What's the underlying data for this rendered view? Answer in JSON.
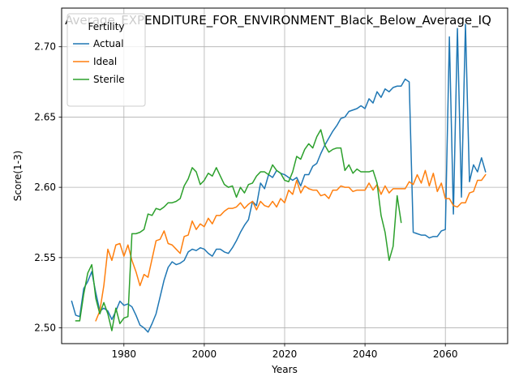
{
  "chart_data": {
    "type": "line",
    "title": "Average_EXPENDITURE_FOR_ENVIRONMENT_Black_Below_Average_IQ",
    "xlabel": "Years",
    "ylabel": "Score(1-3)",
    "xlim": [
      1964.5,
      2075.5
    ],
    "ylim": [
      2.4888,
      2.7275
    ],
    "x_ticks": [
      1980,
      2000,
      2020,
      2040,
      2060
    ],
    "x_tick_labels": [
      "1980",
      "2000",
      "2020",
      "2040",
      "2060"
    ],
    "y_ticks": [
      2.5,
      2.55,
      2.6,
      2.65,
      2.7
    ],
    "y_tick_labels": [
      "2.50",
      "2.55",
      "2.60",
      "2.65",
      "2.70"
    ],
    "grid": true,
    "legend": {
      "title": "Fertility",
      "position": "top-left"
    },
    "series": [
      {
        "name": "Actual",
        "color": "#1f77b4",
        "x": [
          1967,
          1968,
          1969,
          1970,
          1971,
          1972,
          1973,
          1974,
          1975,
          1976,
          1977,
          1978,
          1979,
          1980,
          1981,
          1982,
          1983,
          1984,
          1985,
          1986,
          1987,
          1988,
          1989,
          1990,
          1991,
          1992,
          1993,
          1994,
          1995,
          1996,
          1997,
          1998,
          1999,
          2000,
          2001,
          2002,
          2003,
          2004,
          2005,
          2006,
          2007,
          2008,
          2009,
          2010,
          2011,
          2012,
          2013,
          2014,
          2015,
          2016,
          2017,
          2018,
          2019,
          2020,
          2021,
          2022,
          2023,
          2024,
          2025,
          2026,
          2027,
          2028,
          2029,
          2030,
          2031,
          2032,
          2033,
          2034,
          2035,
          2036,
          2037,
          2038,
          2039,
          2040,
          2041,
          2042,
          2043,
          2044,
          2045,
          2046,
          2047,
          2048,
          2049,
          2050,
          2051,
          2052,
          2053,
          2054,
          2055,
          2056,
          2057,
          2058,
          2059,
          2060,
          2061,
          2062,
          2063,
          2064,
          2065,
          2066,
          2067,
          2068,
          2069,
          2070
        ],
        "y": [
          2.519,
          2.509,
          2.508,
          2.528,
          2.533,
          2.54,
          2.525,
          2.512,
          2.514,
          2.512,
          2.506,
          2.512,
          2.519,
          2.516,
          2.517,
          2.515,
          2.509,
          2.502,
          2.5,
          2.497,
          2.503,
          2.51,
          2.522,
          2.534,
          2.543,
          2.547,
          2.545,
          2.546,
          2.548,
          2.554,
          2.556,
          2.555,
          2.557,
          2.556,
          2.553,
          2.551,
          2.556,
          2.556,
          2.554,
          2.553,
          2.557,
          2.562,
          2.568,
          2.573,
          2.577,
          2.59,
          2.587,
          2.603,
          2.599,
          2.609,
          2.607,
          2.612,
          2.61,
          2.609,
          2.607,
          2.605,
          2.607,
          2.601,
          2.609,
          2.609,
          2.615,
          2.617,
          2.624,
          2.63,
          2.635,
          2.64,
          2.644,
          2.649,
          2.65,
          2.654,
          2.655,
          2.656,
          2.658,
          2.656,
          2.663,
          2.66,
          2.668,
          2.664,
          2.67,
          2.668,
          2.671,
          2.672,
          2.672,
          2.677,
          2.675,
          2.568,
          2.567,
          2.566,
          2.566,
          2.564,
          2.565,
          2.565,
          2.569,
          2.57,
          2.707,
          2.581,
          2.713,
          2.593,
          2.716,
          2.604,
          2.616,
          2.611,
          2.621,
          2.611
        ]
      },
      {
        "name": "Ideal",
        "color": "#ff7f0e",
        "x": [
          1973,
          1974,
          1975,
          1976,
          1977,
          1978,
          1979,
          1980,
          1981,
          1982,
          1983,
          1984,
          1985,
          1986,
          1987,
          1988,
          1989,
          1990,
          1991,
          1992,
          1993,
          1994,
          1995,
          1996,
          1997,
          1998,
          1999,
          2000,
          2001,
          2002,
          2003,
          2004,
          2005,
          2006,
          2007,
          2008,
          2009,
          2010,
          2011,
          2012,
          2013,
          2014,
          2015,
          2016,
          2017,
          2018,
          2019,
          2020,
          2021,
          2022,
          2023,
          2024,
          2025,
          2026,
          2027,
          2028,
          2029,
          2030,
          2031,
          2032,
          2033,
          2034,
          2035,
          2036,
          2037,
          2038,
          2039,
          2040,
          2041,
          2042,
          2043,
          2044,
          2045,
          2046,
          2047,
          2048,
          2049,
          2050,
          2051,
          2052,
          2053,
          2054,
          2055,
          2056,
          2057,
          2058,
          2059,
          2060,
          2061,
          2062,
          2063,
          2064,
          2065,
          2066,
          2067,
          2068,
          2069,
          2070
        ],
        "y": [
          2.505,
          2.512,
          2.53,
          2.556,
          2.548,
          2.559,
          2.56,
          2.551,
          2.559,
          2.548,
          2.54,
          2.53,
          2.538,
          2.536,
          2.549,
          2.562,
          2.563,
          2.569,
          2.56,
          2.559,
          2.556,
          2.553,
          2.565,
          2.566,
          2.576,
          2.57,
          2.574,
          2.572,
          2.578,
          2.574,
          2.58,
          2.58,
          2.583,
          2.585,
          2.585,
          2.586,
          2.589,
          2.585,
          2.588,
          2.59,
          2.584,
          2.59,
          2.587,
          2.586,
          2.59,
          2.586,
          2.592,
          2.589,
          2.598,
          2.595,
          2.605,
          2.596,
          2.601,
          2.599,
          2.598,
          2.598,
          2.594,
          2.595,
          2.592,
          2.598,
          2.598,
          2.601,
          2.6,
          2.6,
          2.597,
          2.598,
          2.598,
          2.598,
          2.603,
          2.598,
          2.602,
          2.595,
          2.601,
          2.596,
          2.599,
          2.599,
          2.599,
          2.599,
          2.604,
          2.602,
          2.609,
          2.603,
          2.612,
          2.601,
          2.61,
          2.597,
          2.603,
          2.592,
          2.592,
          2.587,
          2.586,
          2.589,
          2.589,
          2.596,
          2.597,
          2.605,
          2.605,
          2.609
        ]
      },
      {
        "name": "Sterile",
        "color": "#2ca02c",
        "x": [
          1968,
          1969,
          1970,
          1971,
          1972,
          1973,
          1974,
          1975,
          1976,
          1977,
          1978,
          1979,
          1980,
          1981,
          1982,
          1983,
          1984,
          1985,
          1986,
          1987,
          1988,
          1989,
          1990,
          1991,
          1992,
          1993,
          1994,
          1995,
          1996,
          1997,
          1998,
          1999,
          2000,
          2001,
          2002,
          2003,
          2004,
          2005,
          2006,
          2007,
          2008,
          2009,
          2010,
          2011,
          2012,
          2013,
          2014,
          2015,
          2016,
          2017,
          2018,
          2019,
          2020,
          2021,
          2022,
          2023,
          2024,
          2025,
          2026,
          2027,
          2028,
          2029,
          2030,
          2031,
          2032,
          2033,
          2034,
          2035,
          2036,
          2037,
          2038,
          2039,
          2040,
          2041,
          2042,
          2043,
          2044,
          2045,
          2046,
          2047,
          2048,
          2049
        ],
        "y": [
          2.505,
          2.505,
          2.524,
          2.539,
          2.545,
          2.521,
          2.51,
          2.518,
          2.51,
          2.498,
          2.514,
          2.503,
          2.507,
          2.508,
          2.567,
          2.567,
          2.568,
          2.57,
          2.581,
          2.58,
          2.585,
          2.584,
          2.586,
          2.589,
          2.589,
          2.59,
          2.592,
          2.601,
          2.606,
          2.614,
          2.611,
          2.602,
          2.605,
          2.61,
          2.608,
          2.614,
          2.608,
          2.602,
          2.6,
          2.601,
          2.593,
          2.6,
          2.596,
          2.602,
          2.603,
          2.608,
          2.611,
          2.611,
          2.609,
          2.616,
          2.612,
          2.61,
          2.605,
          2.604,
          2.611,
          2.622,
          2.62,
          2.627,
          2.631,
          2.628,
          2.636,
          2.641,
          2.63,
          2.625,
          2.627,
          2.628,
          2.628,
          2.612,
          2.616,
          2.61,
          2.613,
          2.611,
          2.611,
          2.611,
          2.612,
          2.603,
          2.58,
          2.568,
          2.548,
          2.558,
          2.594,
          2.575
        ]
      }
    ]
  }
}
